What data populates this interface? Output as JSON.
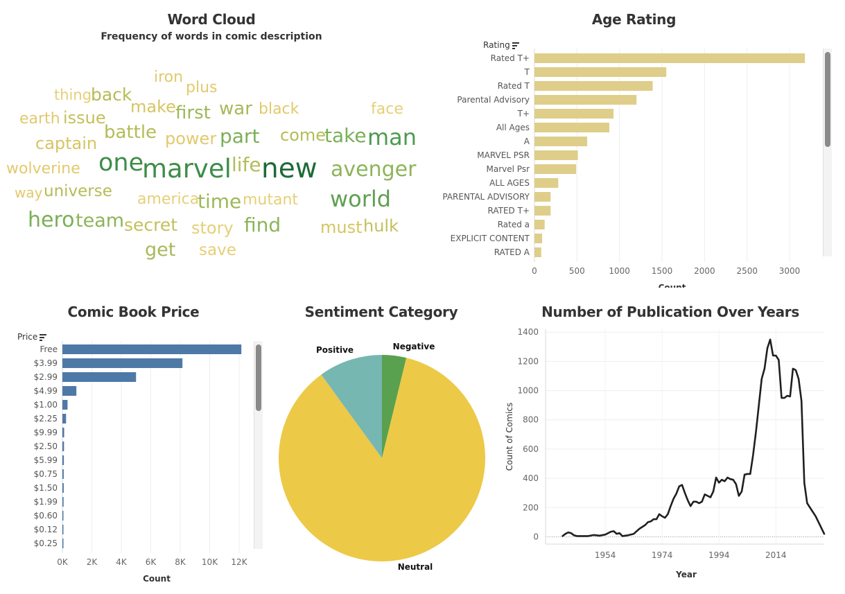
{
  "word_cloud": {
    "title": "Word Cloud",
    "subtitle": "Frequency of words in comic description",
    "words": [
      {
        "text": "iron",
        "color": "#e2c96c"
      },
      {
        "text": "plus",
        "color": "#e2c96c"
      },
      {
        "text": "thing",
        "color": "#e6cf77"
      },
      {
        "text": "back",
        "color": "#b4bc57"
      },
      {
        "text": "make",
        "color": "#d6c562"
      },
      {
        "text": "first",
        "color": "#9db858"
      },
      {
        "text": "war",
        "color": "#a7b95a"
      },
      {
        "text": "black",
        "color": "#e2c96c"
      },
      {
        "text": "face",
        "color": "#e6cf77"
      },
      {
        "text": "earth",
        "color": "#e2c96c"
      },
      {
        "text": "issue",
        "color": "#c4c05c"
      },
      {
        "text": "battle",
        "color": "#b4bc57"
      },
      {
        "text": "captain",
        "color": "#d6c562"
      },
      {
        "text": "power",
        "color": "#e2c96c"
      },
      {
        "text": "part",
        "color": "#7aaf57"
      },
      {
        "text": "come",
        "color": "#b4bc57"
      },
      {
        "text": "take",
        "color": "#7aaf57"
      },
      {
        "text": "man",
        "color": "#4e9a4f"
      },
      {
        "text": "wolverine",
        "color": "#e2c96c"
      },
      {
        "text": "one",
        "color": "#3d8d48"
      },
      {
        "text": "marvel",
        "color": "#3d8d48"
      },
      {
        "text": "life",
        "color": "#b4bc57"
      },
      {
        "text": "new",
        "color": "#1d6b35"
      },
      {
        "text": "avenger",
        "color": "#8db45a"
      },
      {
        "text": "way",
        "color": "#e2c96c"
      },
      {
        "text": "universe",
        "color": "#b4bc57"
      },
      {
        "text": "america",
        "color": "#e6cf77"
      },
      {
        "text": "time",
        "color": "#9db858"
      },
      {
        "text": "mutant",
        "color": "#e6cf77"
      },
      {
        "text": "world",
        "color": "#5f9f52"
      },
      {
        "text": "hero",
        "color": "#7aaf57"
      },
      {
        "text": "team",
        "color": "#8db45a"
      },
      {
        "text": "secret",
        "color": "#c4c05c"
      },
      {
        "text": "story",
        "color": "#e6cf77"
      },
      {
        "text": "find",
        "color": "#8db45a"
      },
      {
        "text": "must",
        "color": "#d6c562"
      },
      {
        "text": "hulk",
        "color": "#c4c05c"
      },
      {
        "text": "get",
        "color": "#a7b95a"
      },
      {
        "text": "save",
        "color": "#e6cf77"
      }
    ]
  },
  "age_rating": {
    "title": "Age Rating",
    "field_label": "Rating",
    "axis_title": "Count",
    "bar_color": "#dfcd8a",
    "categories": [
      "Rated T+",
      "T",
      "Rated T",
      "Parental Advisory",
      "T+",
      "All Ages",
      "A",
      "MARVEL PSR",
      "Marvel Psr",
      "ALL AGES",
      "PARENTAL ADVISORY",
      "RATED T+",
      "Rated a",
      "EXPLICIT CONTENT",
      "RATED A"
    ],
    "values": [
      3180,
      1550,
      1390,
      1200,
      930,
      880,
      620,
      510,
      490,
      280,
      190,
      190,
      120,
      90,
      80
    ],
    "xticks": [
      0,
      500,
      1000,
      1500,
      2000,
      2500,
      3000
    ],
    "xtick_labels": [
      "0",
      "500",
      "1000",
      "1500",
      "2000",
      "2500",
      "3000"
    ],
    "xlim": [
      0,
      3350
    ]
  },
  "comic_price": {
    "title": "Comic Book Price",
    "field_label": "Price",
    "axis_title": "Count",
    "bar_color": "#4e79a7",
    "categories": [
      "Free",
      "$3.99",
      "$2.99",
      "$4.99",
      "$1.00",
      "$2.25",
      "$9.99",
      "$2.50",
      "$5.99",
      "$0.75",
      "$1.50",
      "$1.99",
      "$0.60",
      "$0.12",
      "$0.25"
    ],
    "values": [
      12150,
      8150,
      5000,
      950,
      350,
      250,
      120,
      110,
      100,
      90,
      90,
      80,
      50,
      40,
      40
    ],
    "xticks": [
      0,
      2000,
      4000,
      6000,
      8000,
      10000,
      12000
    ],
    "xtick_labels": [
      "0K",
      "2K",
      "4K",
      "6K",
      "8K",
      "10K",
      "12K"
    ],
    "xlim": [
      0,
      12800
    ]
  },
  "sentiment": {
    "title": "Sentiment Category",
    "slices": [
      {
        "label": "Negative",
        "value": 3.8,
        "color": "#59a14f"
      },
      {
        "label": "Neutral",
        "value": 86.2,
        "color": "#edc948"
      },
      {
        "label": "Positive",
        "value": 10.0,
        "color": "#76b7b2"
      }
    ]
  },
  "publications": {
    "title": "Number of Publication Over Years",
    "xlabel": "Year",
    "ylabel": "Count of Comics",
    "line_color": "#1f1f1f",
    "yticks": [
      0,
      200,
      400,
      600,
      800,
      1000,
      1200,
      1400
    ],
    "xticks": [
      1954,
      1974,
      1994,
      2014
    ],
    "xlim": [
      1933,
      2031
    ],
    "ylim": [
      -50,
      1420
    ],
    "points": [
      [
        1939,
        5
      ],
      [
        1940,
        20
      ],
      [
        1941,
        30
      ],
      [
        1942,
        25
      ],
      [
        1943,
        10
      ],
      [
        1944,
        5
      ],
      [
        1946,
        5
      ],
      [
        1948,
        5
      ],
      [
        1950,
        12
      ],
      [
        1952,
        8
      ],
      [
        1954,
        15
      ],
      [
        1956,
        35
      ],
      [
        1957,
        38
      ],
      [
        1958,
        20
      ],
      [
        1959,
        25
      ],
      [
        1960,
        5
      ],
      [
        1962,
        10
      ],
      [
        1964,
        20
      ],
      [
        1966,
        55
      ],
      [
        1968,
        80
      ],
      [
        1969,
        100
      ],
      [
        1970,
        105
      ],
      [
        1971,
        120
      ],
      [
        1972,
        120
      ],
      [
        1973,
        155
      ],
      [
        1974,
        140
      ],
      [
        1975,
        130
      ],
      [
        1976,
        155
      ],
      [
        1977,
        210
      ],
      [
        1978,
        260
      ],
      [
        1979,
        295
      ],
      [
        1980,
        345
      ],
      [
        1981,
        355
      ],
      [
        1982,
        300
      ],
      [
        1983,
        250
      ],
      [
        1984,
        210
      ],
      [
        1985,
        240
      ],
      [
        1986,
        240
      ],
      [
        1987,
        230
      ],
      [
        1988,
        240
      ],
      [
        1989,
        290
      ],
      [
        1990,
        280
      ],
      [
        1991,
        270
      ],
      [
        1992,
        310
      ],
      [
        1993,
        405
      ],
      [
        1994,
        370
      ],
      [
        1995,
        390
      ],
      [
        1996,
        380
      ],
      [
        1997,
        405
      ],
      [
        1998,
        395
      ],
      [
        1999,
        390
      ],
      [
        2000,
        360
      ],
      [
        2001,
        280
      ],
      [
        2002,
        310
      ],
      [
        2003,
        425
      ],
      [
        2004,
        430
      ],
      [
        2005,
        430
      ],
      [
        2006,
        560
      ],
      [
        2007,
        720
      ],
      [
        2008,
        900
      ],
      [
        2009,
        1080
      ],
      [
        2010,
        1150
      ],
      [
        2011,
        1290
      ],
      [
        2012,
        1350
      ],
      [
        2013,
        1240
      ],
      [
        2014,
        1240
      ],
      [
        2015,
        1210
      ],
      [
        2016,
        950
      ],
      [
        2017,
        950
      ],
      [
        2018,
        965
      ],
      [
        2019,
        960
      ],
      [
        2020,
        1150
      ],
      [
        2021,
        1140
      ],
      [
        2022,
        1080
      ],
      [
        2023,
        930
      ],
      [
        2024,
        370
      ],
      [
        2025,
        230
      ],
      [
        2028,
        140
      ],
      [
        2031,
        20
      ]
    ]
  }
}
